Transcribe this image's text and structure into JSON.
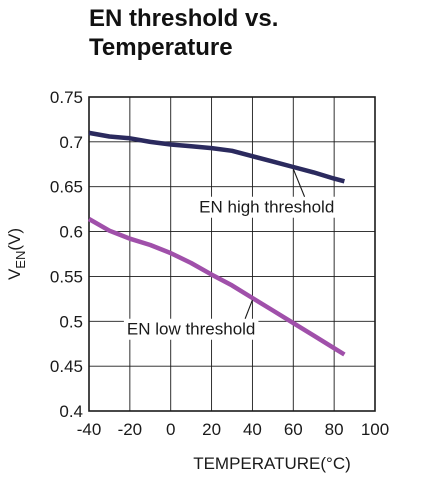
{
  "chart_data": {
    "type": "line",
    "title": "EN threshold vs. Temperature",
    "xlabel": "TEMPERATURE(°C)",
    "ylabel_main": "V",
    "ylabel_sub": "EN",
    "ylabel_unit": "(V)",
    "xlim": [
      -40,
      100
    ],
    "ylim": [
      0.4,
      0.75
    ],
    "x_ticks": [
      -40,
      -20,
      0,
      20,
      40,
      60,
      80,
      100
    ],
    "x_tick_labels": [
      "-40",
      "-20",
      "0",
      "20",
      "40",
      "60",
      "80",
      "100"
    ],
    "y_ticks": [
      0.4,
      0.45,
      0.5,
      0.55,
      0.6,
      0.65,
      0.7,
      0.75
    ],
    "y_tick_labels": [
      "0.4",
      "0.45",
      "0.5",
      "0.55",
      "0.6",
      "0.65",
      "0.7",
      "0.75"
    ],
    "grid": true,
    "series": [
      {
        "name": "EN high threshold",
        "color": "#2b2a5e",
        "x": [
          -40,
          -30,
          -20,
          -10,
          0,
          10,
          20,
          30,
          40,
          50,
          60,
          70,
          80,
          85
        ],
        "y": [
          0.71,
          0.706,
          0.704,
          0.7,
          0.697,
          0.695,
          0.693,
          0.69,
          0.684,
          0.678,
          0.672,
          0.666,
          0.659,
          0.656
        ]
      },
      {
        "name": "EN low threshold",
        "color": "#a050aa",
        "x": [
          -40,
          -30,
          -20,
          -10,
          0,
          10,
          20,
          30,
          40,
          50,
          60,
          70,
          80,
          85
        ],
        "y": [
          0.614,
          0.601,
          0.592,
          0.585,
          0.576,
          0.565,
          0.552,
          0.54,
          0.526,
          0.512,
          0.498,
          0.484,
          0.47,
          0.463
        ]
      }
    ],
    "annotations": [
      {
        "text": "EN high threshold",
        "series": 0,
        "x": 60,
        "y": 0.672,
        "label_x": 47,
        "label_y": 0.621
      },
      {
        "text": "EN low threshold",
        "series": 1,
        "x": 40,
        "y": 0.526,
        "label_x": 10,
        "label_y": 0.485
      }
    ]
  }
}
